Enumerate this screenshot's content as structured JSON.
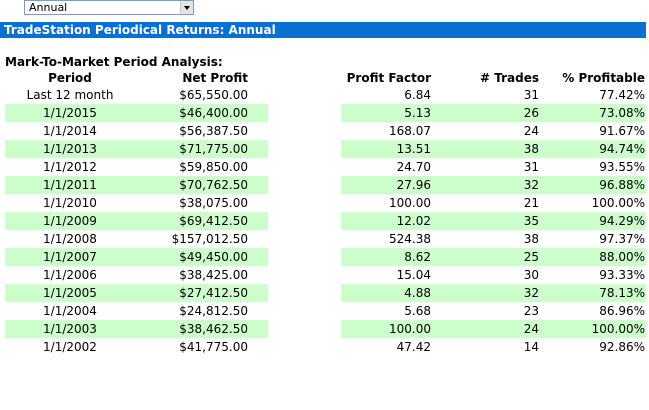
{
  "dropdown": {
    "selected": "Annual"
  },
  "title": "TradeStation Periodical Returns: Annual",
  "section_title": "Mark-To-Market Period Analysis:",
  "columns": {
    "period": "Period",
    "net_profit": "Net Profit",
    "profit_factor": "Profit Factor",
    "trades": "# Trades",
    "pct_profitable": "% Profitable"
  },
  "rows": [
    {
      "period": "Last 12 month",
      "net_profit": "$65,550.00",
      "profit_factor": "6.84",
      "trades": "31",
      "pct_profitable": "77.42%"
    },
    {
      "period": "1/1/2015",
      "net_profit": "$46,400.00",
      "profit_factor": "5.13",
      "trades": "26",
      "pct_profitable": "73.08%"
    },
    {
      "period": "1/1/2014",
      "net_profit": "$56,387.50",
      "profit_factor": "168.07",
      "trades": "24",
      "pct_profitable": "91.67%"
    },
    {
      "period": "1/1/2013",
      "net_profit": "$71,775.00",
      "profit_factor": "13.51",
      "trades": "38",
      "pct_profitable": "94.74%"
    },
    {
      "period": "1/1/2012",
      "net_profit": "$59,850.00",
      "profit_factor": "24.70",
      "trades": "31",
      "pct_profitable": "93.55%"
    },
    {
      "period": "1/1/2011",
      "net_profit": "$70,762.50",
      "profit_factor": "27.96",
      "trades": "32",
      "pct_profitable": "96.88%"
    },
    {
      "period": "1/1/2010",
      "net_profit": "$38,075.00",
      "profit_factor": "100.00",
      "trades": "21",
      "pct_profitable": "100.00%"
    },
    {
      "period": "1/1/2009",
      "net_profit": "$69,412.50",
      "profit_factor": "12.02",
      "trades": "35",
      "pct_profitable": "94.29%"
    },
    {
      "period": "1/1/2008",
      "net_profit": "$157,012.50",
      "profit_factor": "524.38",
      "trades": "38",
      "pct_profitable": "97.37%"
    },
    {
      "period": "1/1/2007",
      "net_profit": "$49,450.00",
      "profit_factor": "8.62",
      "trades": "25",
      "pct_profitable": "88.00%"
    },
    {
      "period": "1/1/2006",
      "net_profit": "$38,425.00",
      "profit_factor": "15.04",
      "trades": "30",
      "pct_profitable": "93.33%"
    },
    {
      "period": "1/1/2005",
      "net_profit": "$27,412.50",
      "profit_factor": "4.88",
      "trades": "32",
      "pct_profitable": "78.13%"
    },
    {
      "period": "1/1/2004",
      "net_profit": "$24,812.50",
      "profit_factor": "5.68",
      "trades": "23",
      "pct_profitable": "86.96%"
    },
    {
      "period": "1/1/2003",
      "net_profit": "$38,462.50",
      "profit_factor": "100.00",
      "trades": "24",
      "pct_profitable": "100.00%"
    },
    {
      "period": "1/1/2002",
      "net_profit": "$41,775.00",
      "profit_factor": "47.42",
      "trades": "14",
      "pct_profitable": "92.86%"
    }
  ],
  "colors": {
    "title_bar": "#0a6fd0",
    "row_shade": "#ccffcc"
  }
}
